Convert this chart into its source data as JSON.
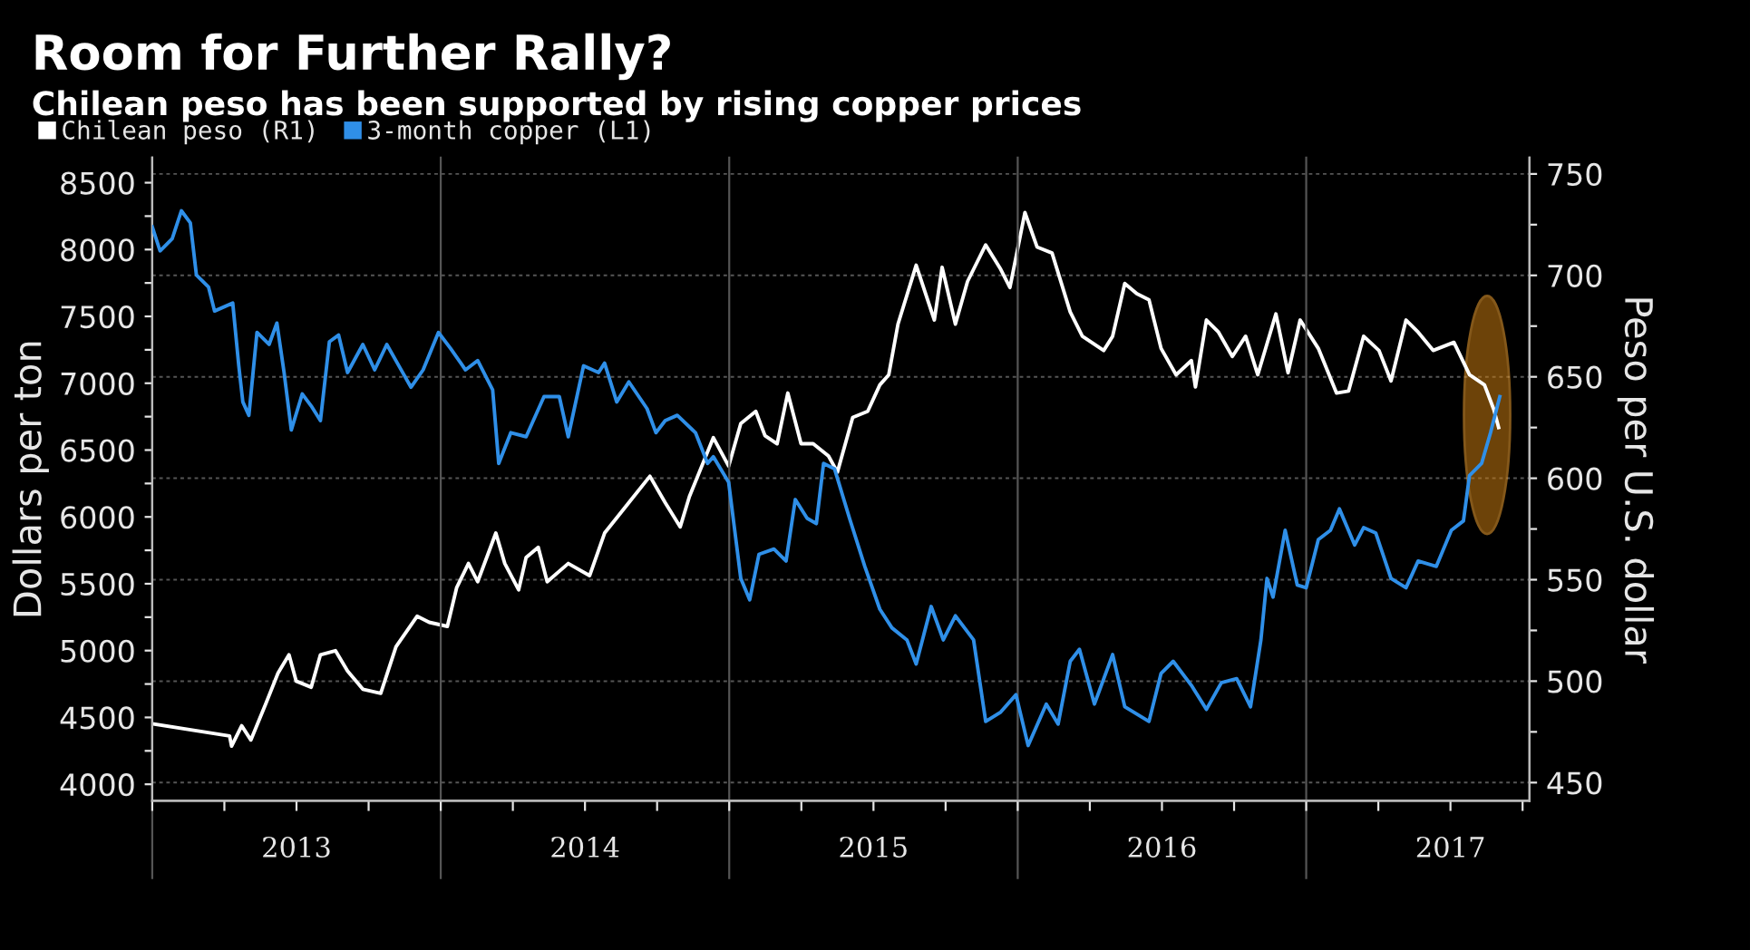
{
  "chart_data": {
    "type": "line",
    "title": "Room for Further Rally?",
    "subtitle": "Chilean peso has been supported by rising copper prices",
    "ylabel": "Dollars per ton",
    "y2label": "Peso per U.S. dollar",
    "series": [
      {
        "name": "Chilean peso (R1)",
        "color": "#ffffff",
        "axis": "y2",
        "x": [
          2013.0,
          2013.268,
          2013.275,
          2013.31,
          2013.342,
          2013.394,
          2013.436,
          2013.474,
          2013.499,
          2013.551,
          2013.583,
          2013.635,
          2013.677,
          2013.73,
          2013.792,
          2013.845,
          2013.918,
          2013.96,
          2014.023,
          2014.055,
          2014.096,
          2014.128,
          2014.191,
          2014.222,
          2014.27,
          2014.296,
          2014.338,
          2014.369,
          2014.442,
          2014.516,
          2014.568,
          2014.652,
          2014.725,
          2014.778,
          2014.83,
          2014.862,
          2014.945,
          2014.998,
          2015.04,
          2015.092,
          2015.124,
          2015.166,
          2015.203,
          2015.249,
          2015.291,
          2015.344,
          2015.375,
          2015.428,
          2015.48,
          2015.522,
          2015.553,
          2015.585,
          2015.648,
          2015.711,
          2015.738,
          2015.784,
          2015.826,
          2015.889,
          2015.941,
          2015.973,
          2016.025,
          2016.067,
          2016.119,
          2016.182,
          2016.224,
          2016.298,
          2016.329,
          2016.371,
          2016.413,
          2016.455,
          2016.497,
          2016.549,
          2016.602,
          2016.616,
          2016.654,
          2016.696,
          2016.744,
          2016.79,
          2016.832,
          2016.895,
          2016.937,
          2016.979,
          2017.042,
          2017.105,
          2017.147,
          2017.199,
          2017.252,
          2017.294,
          2017.346,
          2017.388,
          2017.44,
          2017.512,
          2017.566,
          2017.618,
          2017.65,
          2017.667
        ],
        "values": [
          479,
          473,
          468,
          478,
          471,
          489,
          504,
          513,
          500,
          497,
          513,
          515,
          505,
          496,
          494,
          517,
          532,
          529,
          527,
          546,
          558,
          549,
          573,
          558,
          545,
          561,
          566,
          549,
          558,
          552,
          573,
          588,
          601,
          588,
          576,
          591,
          620,
          606,
          627,
          633,
          621,
          617,
          642,
          617,
          617,
          611,
          603,
          630,
          633,
          646,
          651,
          676,
          705,
          678,
          704,
          676,
          697,
          715,
          703,
          694,
          731,
          714,
          711,
          682,
          670,
          663,
          670,
          696,
          691,
          688,
          664,
          651,
          658,
          645,
          678,
          672,
          660,
          670,
          651,
          681,
          652,
          678,
          664,
          642,
          643,
          670,
          663,
          648,
          678,
          672,
          663,
          667,
          651,
          646,
          634,
          625
        ]
      },
      {
        "name": "3-month copper (L1)",
        "color": "#2f8fe8",
        "x": [
          2013.0,
          2013.027,
          2013.069,
          2013.101,
          2013.132,
          2013.153,
          2013.195,
          2013.216,
          2013.279,
          2013.3,
          2013.314,
          2013.335,
          2013.363,
          2013.405,
          2013.432,
          2013.457,
          2013.482,
          2013.52,
          2013.551,
          2013.583,
          2013.614,
          2013.646,
          2013.677,
          2013.73,
          2013.771,
          2013.813,
          2013.855,
          2013.897,
          2013.939,
          2013.992,
          2014.034,
          2014.086,
          2014.128,
          2014.18,
          2014.201,
          2014.243,
          2014.296,
          2014.358,
          2014.411,
          2014.442,
          2014.495,
          2014.547,
          2014.568,
          2014.61,
          2014.652,
          2014.715,
          2014.746,
          2014.778,
          2014.82,
          2014.883,
          2014.925,
          2014.945,
          2014.998,
          2015.04,
          2015.071,
          2015.103,
          2015.155,
          2015.197,
          2015.229,
          2015.27,
          2015.302,
          2015.327,
          2015.365,
          2015.417,
          2015.47,
          2015.522,
          2015.564,
          2015.616,
          2015.648,
          2015.7,
          2015.742,
          2015.784,
          2015.847,
          2015.889,
          2015.941,
          2015.994,
          2016.036,
          2016.099,
          2016.14,
          2016.182,
          2016.214,
          2016.266,
          2016.329,
          2016.371,
          2016.455,
          2016.497,
          2016.539,
          2016.602,
          2016.654,
          2016.706,
          2016.759,
          2016.807,
          2016.843,
          2016.864,
          2016.885,
          2016.927,
          2016.969,
          2017.0,
          2017.042,
          2017.084,
          2017.115,
          2017.168,
          2017.199,
          2017.241,
          2017.294,
          2017.346,
          2017.388,
          2017.451,
          2017.503,
          2017.545,
          2017.566,
          2017.608,
          2017.639,
          2017.671
        ],
        "values": [
          8170,
          7990,
          8080,
          8290,
          8200,
          7810,
          7720,
          7540,
          7600,
          7130,
          6860,
          6760,
          7380,
          7290,
          7450,
          7080,
          6650,
          6920,
          6830,
          6720,
          7310,
          7360,
          7080,
          7290,
          7100,
          7290,
          7130,
          6970,
          7100,
          7380,
          7260,
          7100,
          7170,
          6950,
          6400,
          6630,
          6600,
          6900,
          6900,
          6600,
          7130,
          7080,
          7150,
          6860,
          7010,
          6810,
          6630,
          6720,
          6760,
          6630,
          6400,
          6450,
          6260,
          5540,
          5380,
          5720,
          5760,
          5670,
          6130,
          5990,
          5950,
          6400,
          6360,
          5990,
          5630,
          5310,
          5170,
          5080,
          4900,
          5330,
          5080,
          5260,
          5080,
          4470,
          4540,
          4670,
          4290,
          4600,
          4450,
          4920,
          5010,
          4600,
          4970,
          4580,
          4470,
          4830,
          4920,
          4740,
          4560,
          4760,
          4790,
          4580,
          5080,
          5540,
          5400,
          5900,
          5490,
          5470,
          5830,
          5900,
          6060,
          5790,
          5920,
          5880,
          5540,
          5470,
          5670,
          5630,
          5900,
          5970,
          6310,
          6400,
          6630,
          6900
        ]
      }
    ],
    "xlim": [
      2013.0,
      2017.774
    ],
    "xticks": [
      {
        "value": 2013.0,
        "label": null
      },
      {
        "value": 2013.25,
        "label": null
      },
      {
        "value": 2013.5,
        "label": "2013"
      },
      {
        "value": 2013.75,
        "label": null
      },
      {
        "value": 2014.0,
        "label": null
      },
      {
        "value": 2014.25,
        "label": null
      },
      {
        "value": 2014.5,
        "label": "2014"
      },
      {
        "value": 2014.75,
        "label": null
      },
      {
        "value": 2015.0,
        "label": null
      },
      {
        "value": 2015.25,
        "label": null
      },
      {
        "value": 2015.5,
        "label": "2015"
      },
      {
        "value": 2015.75,
        "label": null
      },
      {
        "value": 2016.0,
        "label": null
      },
      {
        "value": 2016.25,
        "label": null
      },
      {
        "value": 2016.5,
        "label": "2016"
      },
      {
        "value": 2016.75,
        "label": null
      },
      {
        "value": 2017.0,
        "label": null
      },
      {
        "value": 2017.25,
        "label": null
      },
      {
        "value": 2017.5,
        "label": "2017"
      },
      {
        "value": 2017.75,
        "label": null
      }
    ],
    "ylim": [
      3876,
      8687
    ],
    "yticks": [
      4000,
      {
        "value": 4250,
        "label": null
      },
      4500,
      {
        "value": 4750,
        "label": null
      },
      5000,
      {
        "value": 5250,
        "label": null
      },
      5500,
      {
        "value": 5750,
        "label": null
      },
      6000,
      {
        "value": 6250,
        "label": null
      },
      6500,
      {
        "value": 6750,
        "label": null
      },
      7000,
      {
        "value": 7250,
        "label": null
      },
      7500,
      {
        "value": 7750,
        "label": null
      },
      8000,
      {
        "value": 8250,
        "label": null
      },
      8500
    ],
    "y2lim": [
      441,
      758
    ],
    "y2ticks": [
      450,
      {
        "value": 475,
        "label": null
      },
      500,
      {
        "value": 525,
        "label": null
      },
      550,
      {
        "value": 575,
        "label": null
      },
      600,
      {
        "value": 625,
        "label": null
      },
      650,
      {
        "value": 675,
        "label": null
      },
      700,
      {
        "value": 725,
        "label": null
      },
      750
    ],
    "grid": true,
    "legend": "top left",
    "line_style": "solid",
    "marker": "none"
  }
}
